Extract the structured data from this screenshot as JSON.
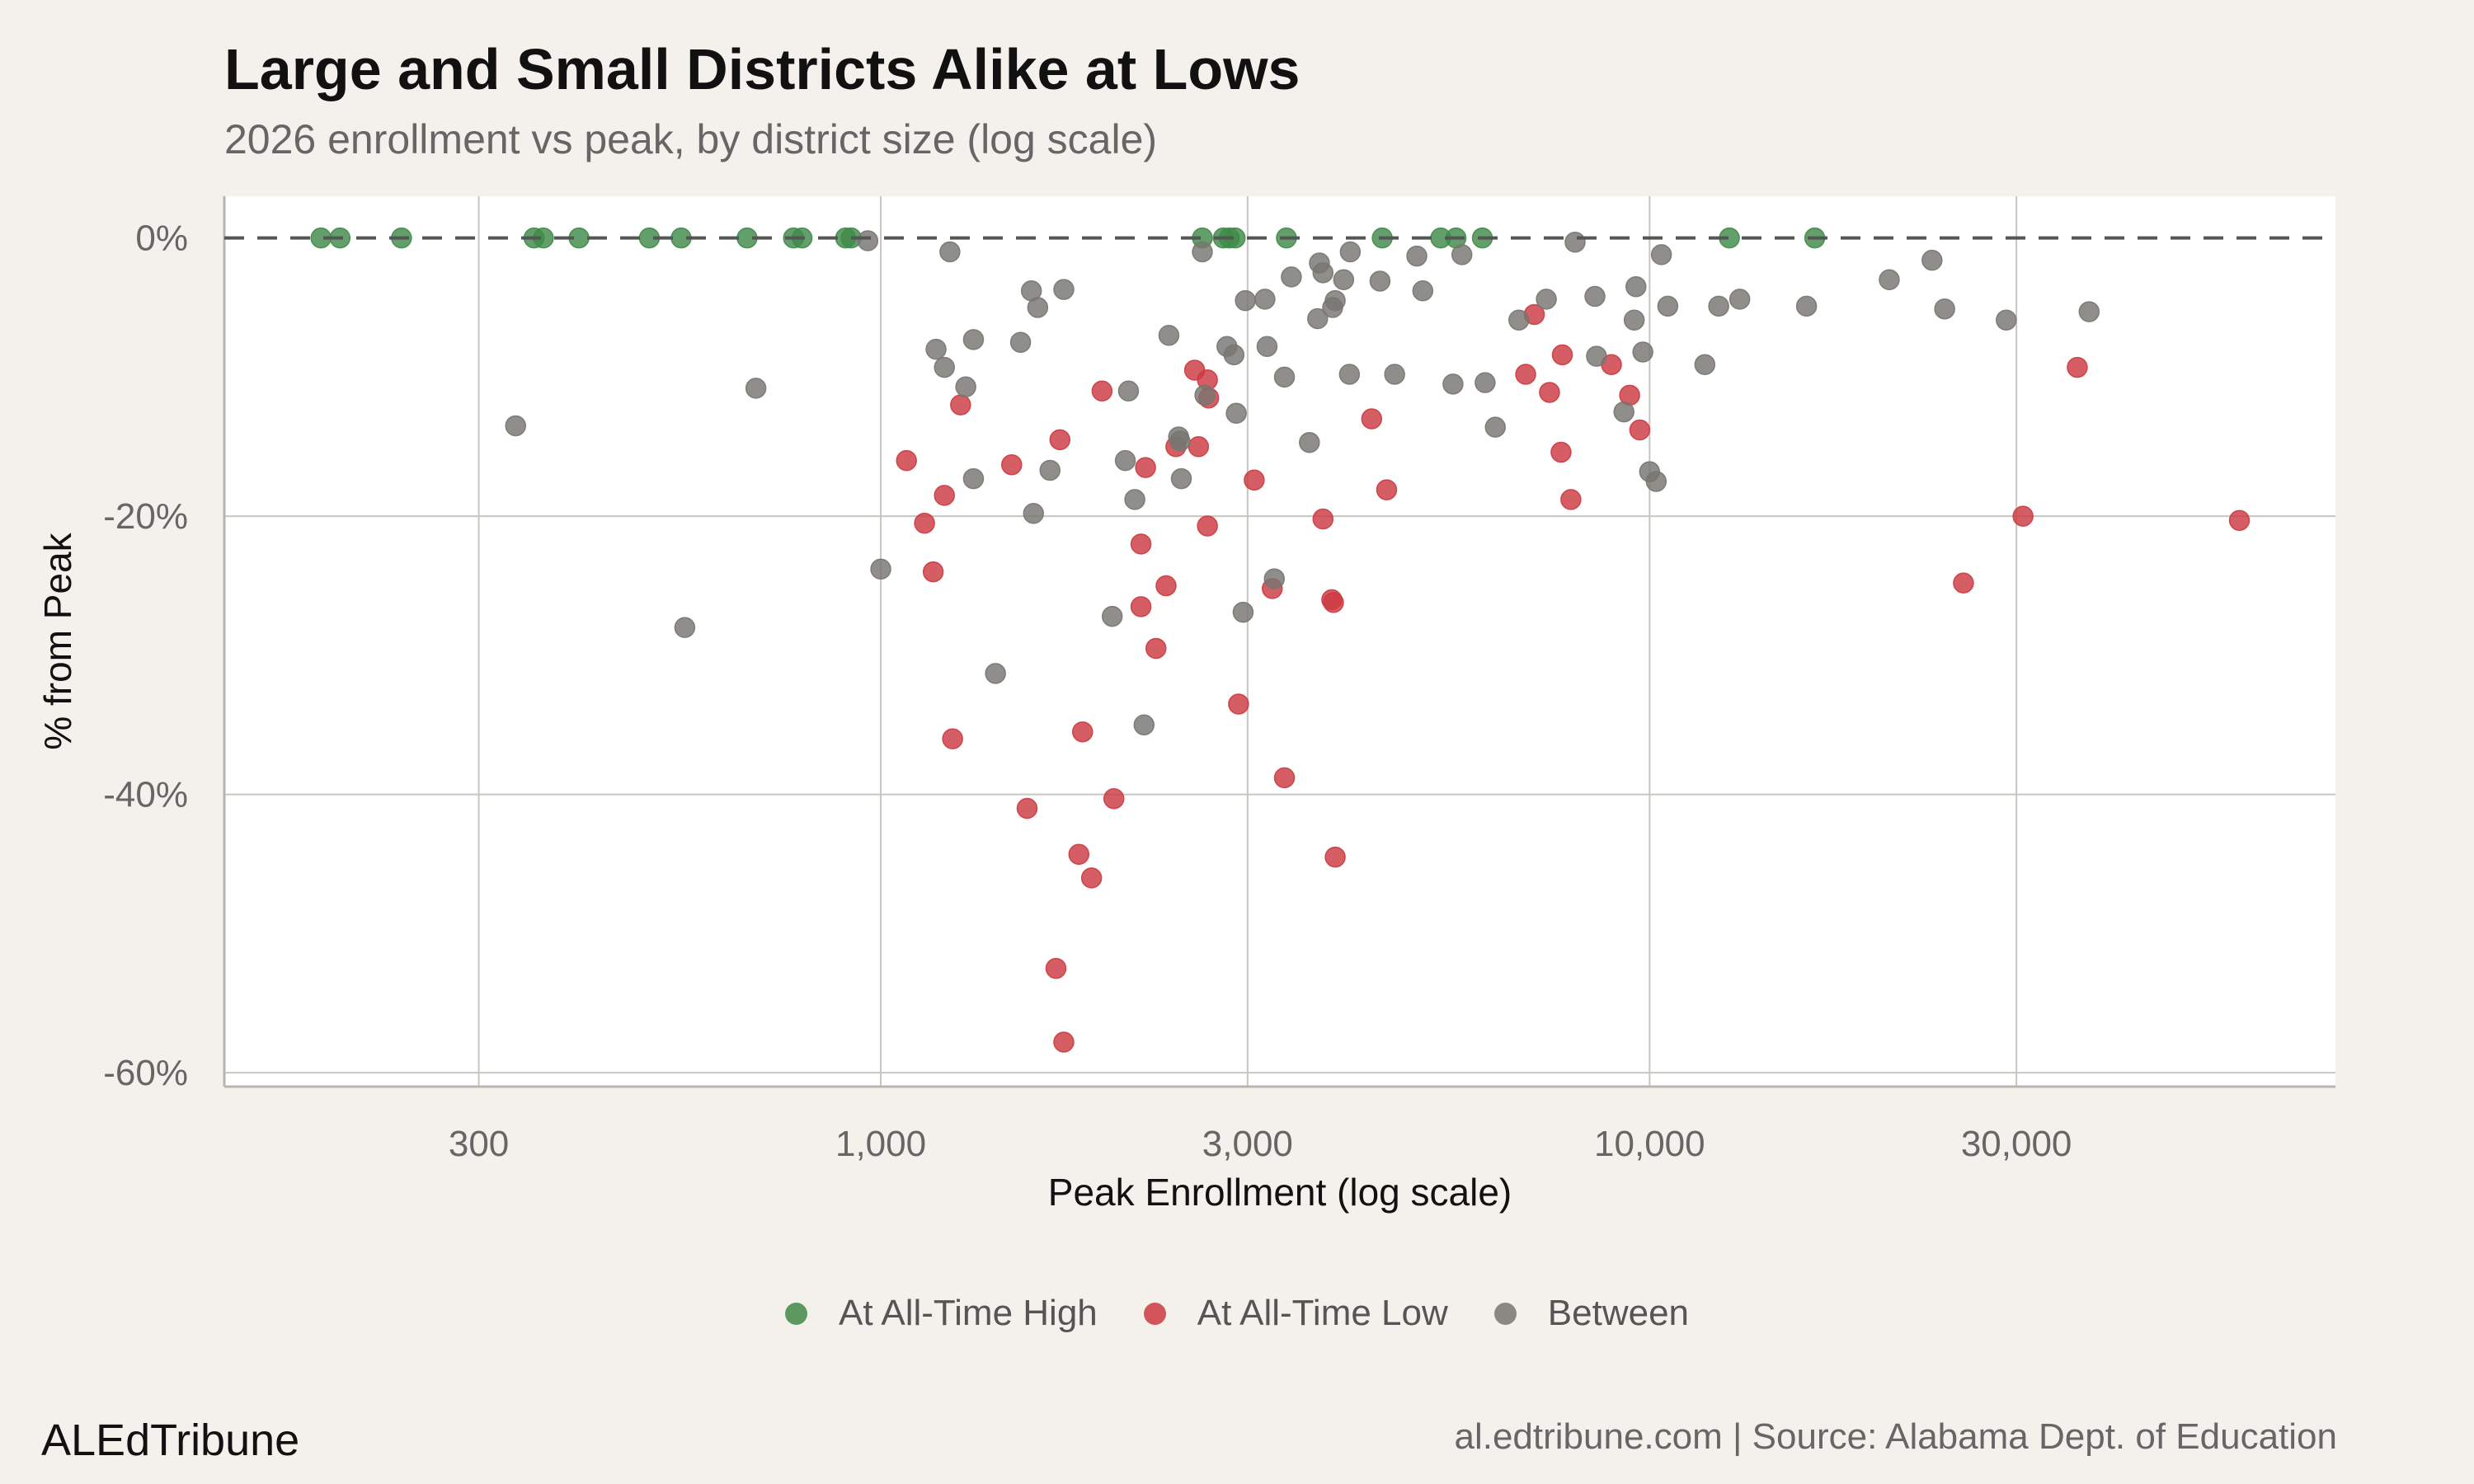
{
  "title": "Large and Small Districts Alike at Lows",
  "subtitle": "2026 enrollment vs peak, by district size (log scale)",
  "brand": "ALEdTribune",
  "source": "al.edtribune.com | Source: Alabama Dept. of Education",
  "chart_data": {
    "type": "scatter",
    "title": "Large and Small Districts Alike at Lows",
    "subtitle": "2026 enrollment vs peak, by district size (log scale)",
    "xlabel": "Peak Enrollment (log scale)",
    "ylabel": "% from Peak",
    "x_scale": "log",
    "xlim": [
      140,
      78000
    ],
    "ylim": [
      -61,
      3
    ],
    "x_ticks": [
      300,
      1000,
      3000,
      10000,
      30000
    ],
    "x_tick_labels": [
      "300",
      "1,000",
      "3,000",
      "10,000",
      "30,000"
    ],
    "y_ticks": [
      0,
      -20,
      -40,
      -60
    ],
    "y_tick_labels": [
      "0%",
      "-20%",
      "-40%",
      "-60%"
    ],
    "reference_line": {
      "y": 0,
      "style": "dashed"
    },
    "grid": true,
    "legend_position": "bottom",
    "series": [
      {
        "name": "At All-Time High",
        "color": "#3f8a49",
        "points": [
          [
            187,
            0
          ],
          [
            198,
            0
          ],
          [
            238,
            0
          ],
          [
            354,
            0
          ],
          [
            364,
            0
          ],
          [
            405,
            0
          ],
          [
            500,
            0
          ],
          [
            550,
            0
          ],
          [
            670,
            0
          ],
          [
            770,
            0
          ],
          [
            790,
            0
          ],
          [
            900,
            0
          ],
          [
            915,
            0
          ],
          [
            2620,
            0
          ],
          [
            2790,
            0
          ],
          [
            2840,
            0
          ],
          [
            2890,
            0
          ],
          [
            3370,
            0
          ],
          [
            4490,
            0
          ],
          [
            5350,
            0
          ],
          [
            5600,
            0
          ],
          [
            6060,
            0
          ],
          [
            12700,
            0
          ],
          [
            16400,
            0
          ]
        ]
      },
      {
        "name": "At All-Time Low",
        "color": "#cc3a42",
        "points": [
          [
            1080,
            -16
          ],
          [
            1140,
            -20.5
          ],
          [
            1170,
            -24
          ],
          [
            1210,
            -18.5
          ],
          [
            1240,
            -36
          ],
          [
            1270,
            -12
          ],
          [
            1480,
            -16.3
          ],
          [
            1550,
            -41
          ],
          [
            1690,
            -52.5
          ],
          [
            1710,
            -14.5
          ],
          [
            1730,
            -57.8
          ],
          [
            1810,
            -44.3
          ],
          [
            1830,
            -35.5
          ],
          [
            1880,
            -46
          ],
          [
            1940,
            -11
          ],
          [
            2010,
            -40.3
          ],
          [
            2180,
            -22
          ],
          [
            2180,
            -26.5
          ],
          [
            2210,
            -16.5
          ],
          [
            2280,
            -29.5
          ],
          [
            2350,
            -25
          ],
          [
            2420,
            -15
          ],
          [
            2560,
            -9.5
          ],
          [
            2590,
            -15
          ],
          [
            2660,
            -10.2
          ],
          [
            2660,
            -20.7
          ],
          [
            2670,
            -11.5
          ],
          [
            2920,
            -33.5
          ],
          [
            3060,
            -17.4
          ],
          [
            3230,
            -25.2
          ],
          [
            3350,
            -38.8
          ],
          [
            3760,
            -20.2
          ],
          [
            3860,
            -26
          ],
          [
            3880,
            -26.2
          ],
          [
            3900,
            -44.5
          ],
          [
            4350,
            -13
          ],
          [
            4550,
            -18.1
          ],
          [
            6900,
            -9.8
          ],
          [
            7080,
            -5.5
          ],
          [
            7410,
            -11.1
          ],
          [
            7670,
            -15.4
          ],
          [
            7700,
            -8.4
          ],
          [
            7900,
            -18.8
          ],
          [
            8920,
            -9.1
          ],
          [
            9420,
            -11.3
          ],
          [
            9710,
            -13.8
          ],
          [
            25600,
            -24.8
          ],
          [
            30600,
            -20
          ],
          [
            36000,
            -9.3
          ],
          [
            58500,
            -20.3
          ]
        ]
      },
      {
        "name": "Between",
        "color": "#777570",
        "points": [
          [
            335,
            -13.5
          ],
          [
            556,
            -28
          ],
          [
            688,
            -10.8
          ],
          [
            962,
            -0.2
          ],
          [
            1000,
            -23.8
          ],
          [
            1180,
            -8
          ],
          [
            1210,
            -9.3
          ],
          [
            1230,
            -1
          ],
          [
            1290,
            -10.7
          ],
          [
            1320,
            -7.3
          ],
          [
            1320,
            -17.3
          ],
          [
            1410,
            -31.3
          ],
          [
            1520,
            -7.5
          ],
          [
            1570,
            -3.8
          ],
          [
            1580,
            -19.8
          ],
          [
            1600,
            -5
          ],
          [
            1660,
            -16.7
          ],
          [
            1730,
            -3.7
          ],
          [
            2000,
            -27.2
          ],
          [
            2080,
            -16
          ],
          [
            2100,
            -11
          ],
          [
            2140,
            -18.8
          ],
          [
            2200,
            -35
          ],
          [
            2370,
            -7
          ],
          [
            2440,
            -14.3
          ],
          [
            2450,
            -14.6
          ],
          [
            2460,
            -17.3
          ],
          [
            2620,
            -1
          ],
          [
            2640,
            -11.3
          ],
          [
            2820,
            -7.8
          ],
          [
            2880,
            -8.4
          ],
          [
            2900,
            -12.6
          ],
          [
            2960,
            -26.9
          ],
          [
            2980,
            -4.5
          ],
          [
            3160,
            -4.4
          ],
          [
            3180,
            -7.8
          ],
          [
            3250,
            -24.5
          ],
          [
            3350,
            -10
          ],
          [
            3420,
            -2.8
          ],
          [
            3610,
            -14.7
          ],
          [
            3700,
            -5.8
          ],
          [
            3720,
            -1.8
          ],
          [
            3760,
            -2.5
          ],
          [
            3870,
            -5
          ],
          [
            3900,
            -4.5
          ],
          [
            4000,
            -3
          ],
          [
            4070,
            -9.8
          ],
          [
            4080,
            -1
          ],
          [
            4460,
            -3.1
          ],
          [
            4660,
            -9.8
          ],
          [
            4980,
            -1.3
          ],
          [
            5070,
            -3.8
          ],
          [
            5550,
            -10.5
          ],
          [
            5700,
            -1.2
          ],
          [
            6110,
            -10.4
          ],
          [
            6300,
            -13.6
          ],
          [
            6760,
            -5.9
          ],
          [
            7340,
            -4.4
          ],
          [
            8000,
            -0.3
          ],
          [
            8490,
            -4.2
          ],
          [
            8530,
            -8.5
          ],
          [
            9260,
            -12.5
          ],
          [
            9550,
            -5.9
          ],
          [
            9600,
            -3.5
          ],
          [
            9800,
            -8.2
          ],
          [
            10000,
            -16.8
          ],
          [
            10200,
            -17.5
          ],
          [
            10360,
            -1.2
          ],
          [
            10560,
            -4.9
          ],
          [
            11800,
            -9.1
          ],
          [
            12300,
            -4.9
          ],
          [
            13100,
            -4.4
          ],
          [
            16000,
            -4.9
          ],
          [
            20500,
            -3
          ],
          [
            23300,
            -1.6
          ],
          [
            24200,
            -5.1
          ],
          [
            29100,
            -5.9
          ],
          [
            37300,
            -5.3
          ]
        ]
      }
    ]
  }
}
